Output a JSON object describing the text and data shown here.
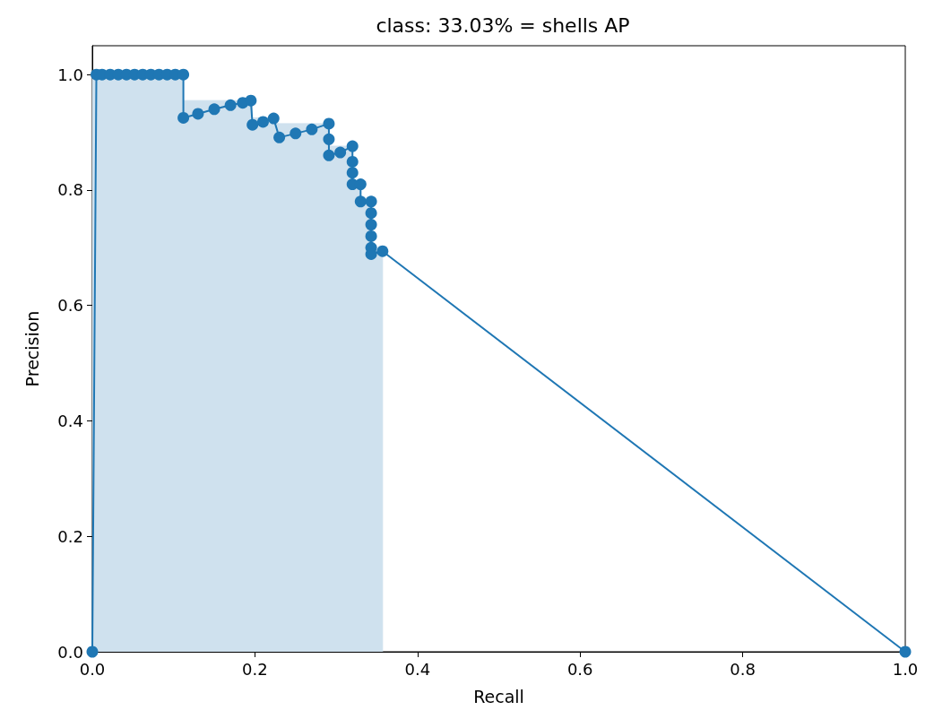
{
  "chart_data": {
    "type": "line",
    "title": "class: 33.03% = shells AP",
    "xlabel": "Recall",
    "ylabel": "Precision",
    "xlim": [
      0,
      1
    ],
    "ylim": [
      0,
      1.05
    ],
    "xticks": [
      {
        "value": 0,
        "label": "0.0"
      },
      {
        "value": 0.2,
        "label": "0.2"
      },
      {
        "value": 0.4,
        "label": "0.4"
      },
      {
        "value": 0.6,
        "label": "0.6"
      },
      {
        "value": 0.8,
        "label": "0.8"
      },
      {
        "value": 1,
        "label": "1.0"
      }
    ],
    "yticks": [
      {
        "value": 0,
        "label": "0.0"
      },
      {
        "value": 0.2,
        "label": "0.2"
      },
      {
        "value": 0.4,
        "label": "0.4"
      },
      {
        "value": 0.6,
        "label": "0.6"
      },
      {
        "value": 0.8,
        "label": "0.8"
      },
      {
        "value": 1,
        "label": "1.0"
      }
    ],
    "grid": false,
    "series": [
      {
        "type": "area",
        "color": "#cfe1ee",
        "x": [
          0,
          0.112,
          0.112,
          0.197,
          0.197,
          0.228,
          0.228,
          0.291,
          0.291,
          0.32,
          0.32,
          0.33,
          0.33,
          0.343,
          0.343,
          0.357,
          0.357
        ],
        "values": [
          1,
          1,
          0.955,
          0.955,
          0.925,
          0.925,
          0.915,
          0.915,
          0.876,
          0.876,
          0.81,
          0.81,
          0.78,
          0.78,
          0.694,
          0.694,
          0
        ]
      },
      {
        "color": "#1f77b4",
        "marker": "circle",
        "x": [
          0,
          0.005,
          0.012,
          0.022,
          0.032,
          0.042,
          0.052,
          0.062,
          0.072,
          0.082,
          0.092,
          0.102,
          0.112,
          0.112,
          0.13,
          0.15,
          0.17,
          0.185,
          0.195,
          0.197,
          0.21,
          0.223,
          0.23,
          0.25,
          0.27,
          0.291,
          0.291,
          0.291,
          0.305,
          0.32,
          0.32,
          0.32,
          0.32,
          0.33,
          0.33,
          0.343,
          0.343,
          0.343,
          0.343,
          0.343,
          0.343,
          0.357,
          1
        ],
        "values": [
          0,
          1,
          1,
          1,
          1,
          1,
          1,
          1,
          1,
          1,
          1,
          1,
          1,
          0.925,
          0.932,
          0.94,
          0.947,
          0.951,
          0.955,
          0.913,
          0.918,
          0.924,
          0.891,
          0.898,
          0.905,
          0.915,
          0.888,
          0.86,
          0.865,
          0.876,
          0.849,
          0.83,
          0.81,
          0.81,
          0.78,
          0.78,
          0.76,
          0.74,
          0.72,
          0.7,
          0.689,
          0.694,
          0
        ]
      }
    ]
  }
}
